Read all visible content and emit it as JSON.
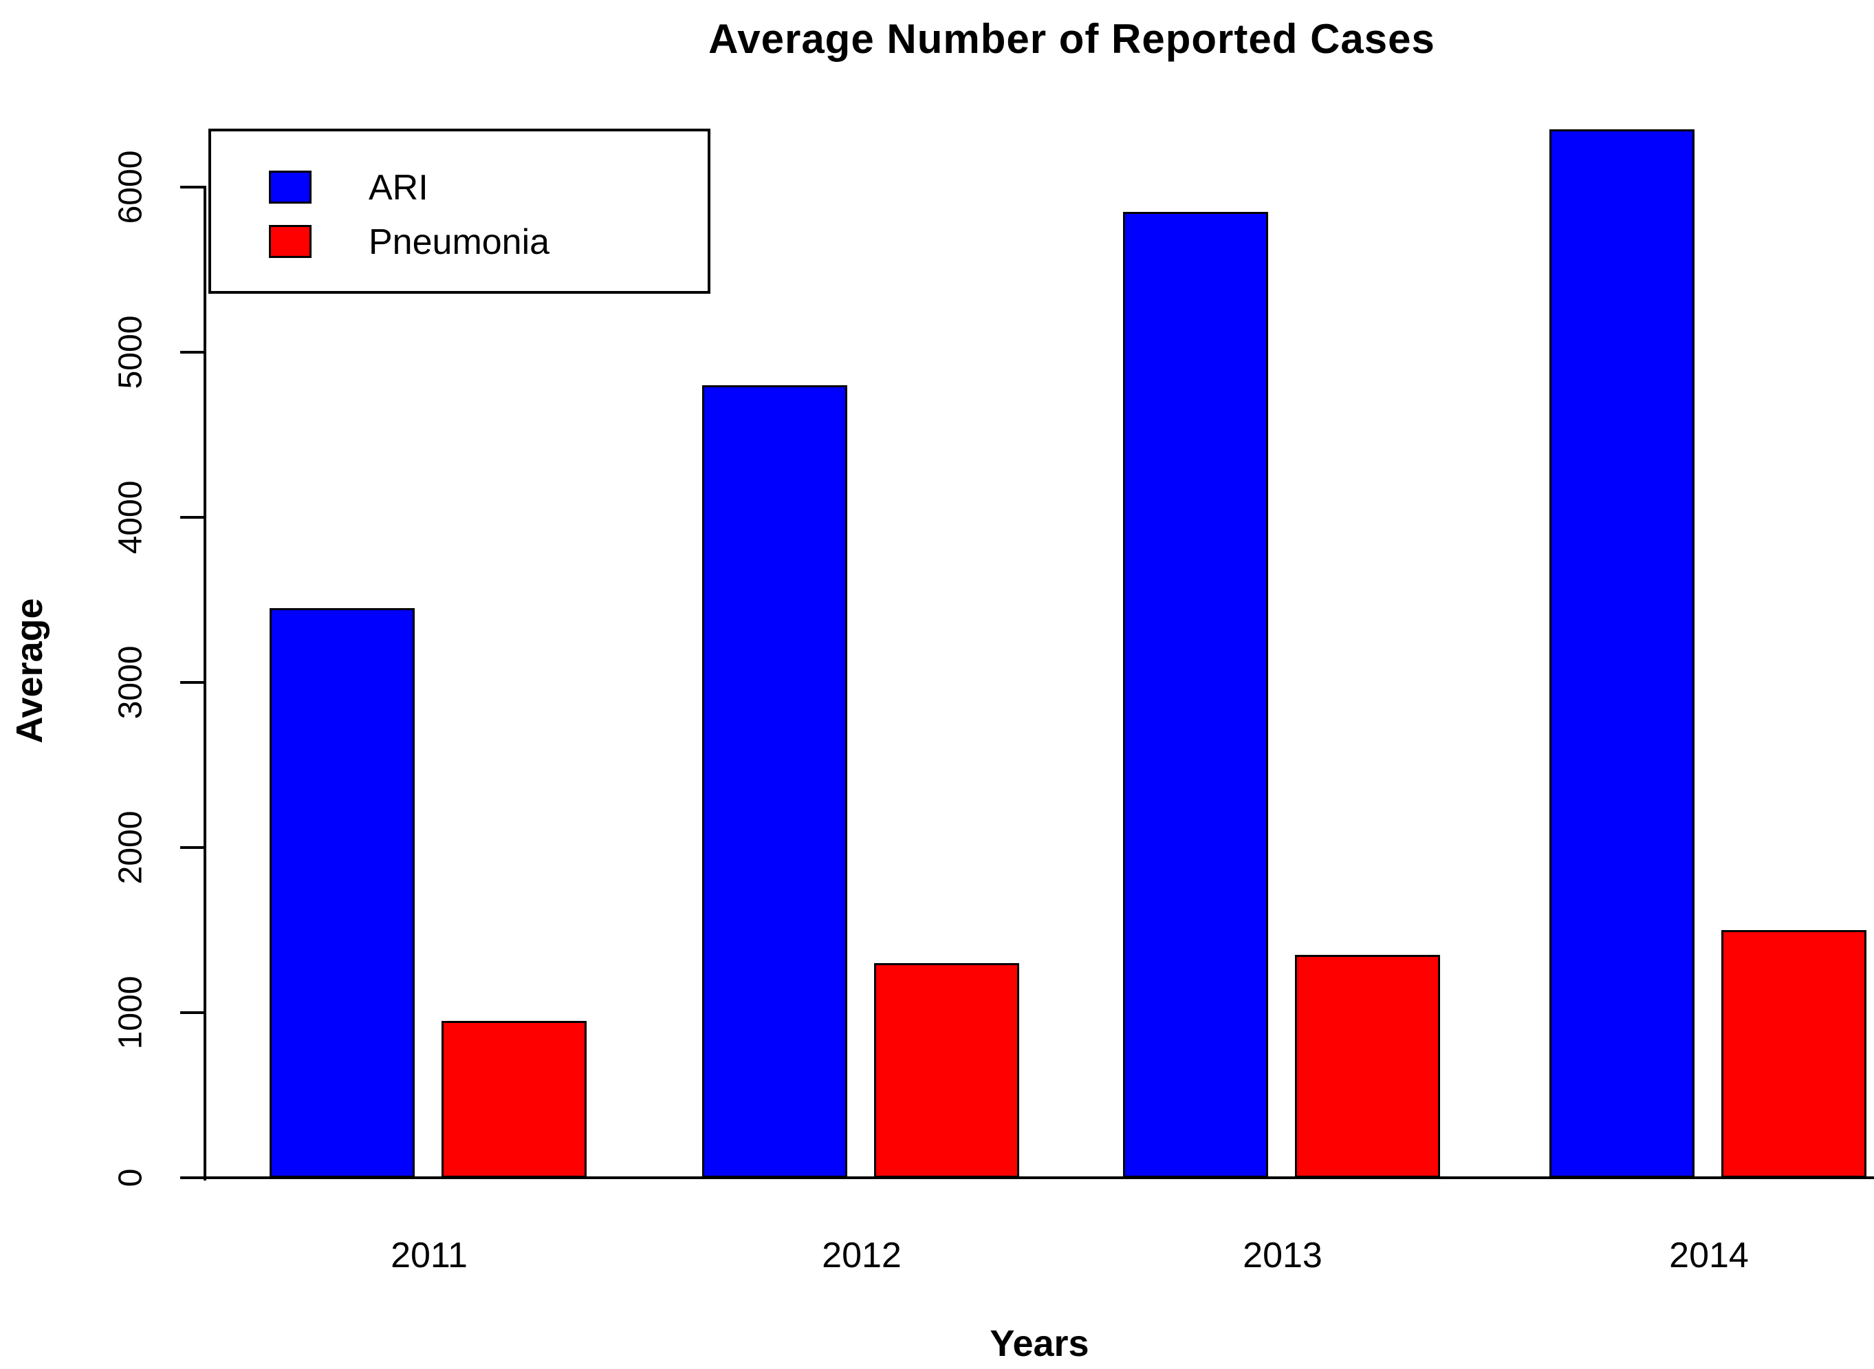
{
  "chart_data": {
    "type": "bar",
    "title": "Average Number of Reported Cases",
    "xlabel": "Years",
    "ylabel": "Average",
    "categories": [
      "2011",
      "2012",
      "2013",
      "2014"
    ],
    "series": [
      {
        "name": "ARI",
        "color": "#0000ff",
        "values": [
          3450,
          4800,
          5850,
          6350
        ]
      },
      {
        "name": "Pneumonia",
        "color": "#ff0000",
        "values": [
          950,
          1300,
          1350,
          1500
        ]
      }
    ],
    "ylim": [
      0,
      6500
    ],
    "yticks": [
      0,
      1000,
      2000,
      3000,
      4000,
      5000,
      6000
    ],
    "ytick_labels": [
      "0",
      "1000",
      "2000",
      "3000",
      "4000",
      "5000",
      "6000"
    ],
    "grid": false,
    "legend_position": "top-left",
    "bar_border_color": "#000000",
    "axis_color": "#000000",
    "background_color": "#ffffff"
  }
}
